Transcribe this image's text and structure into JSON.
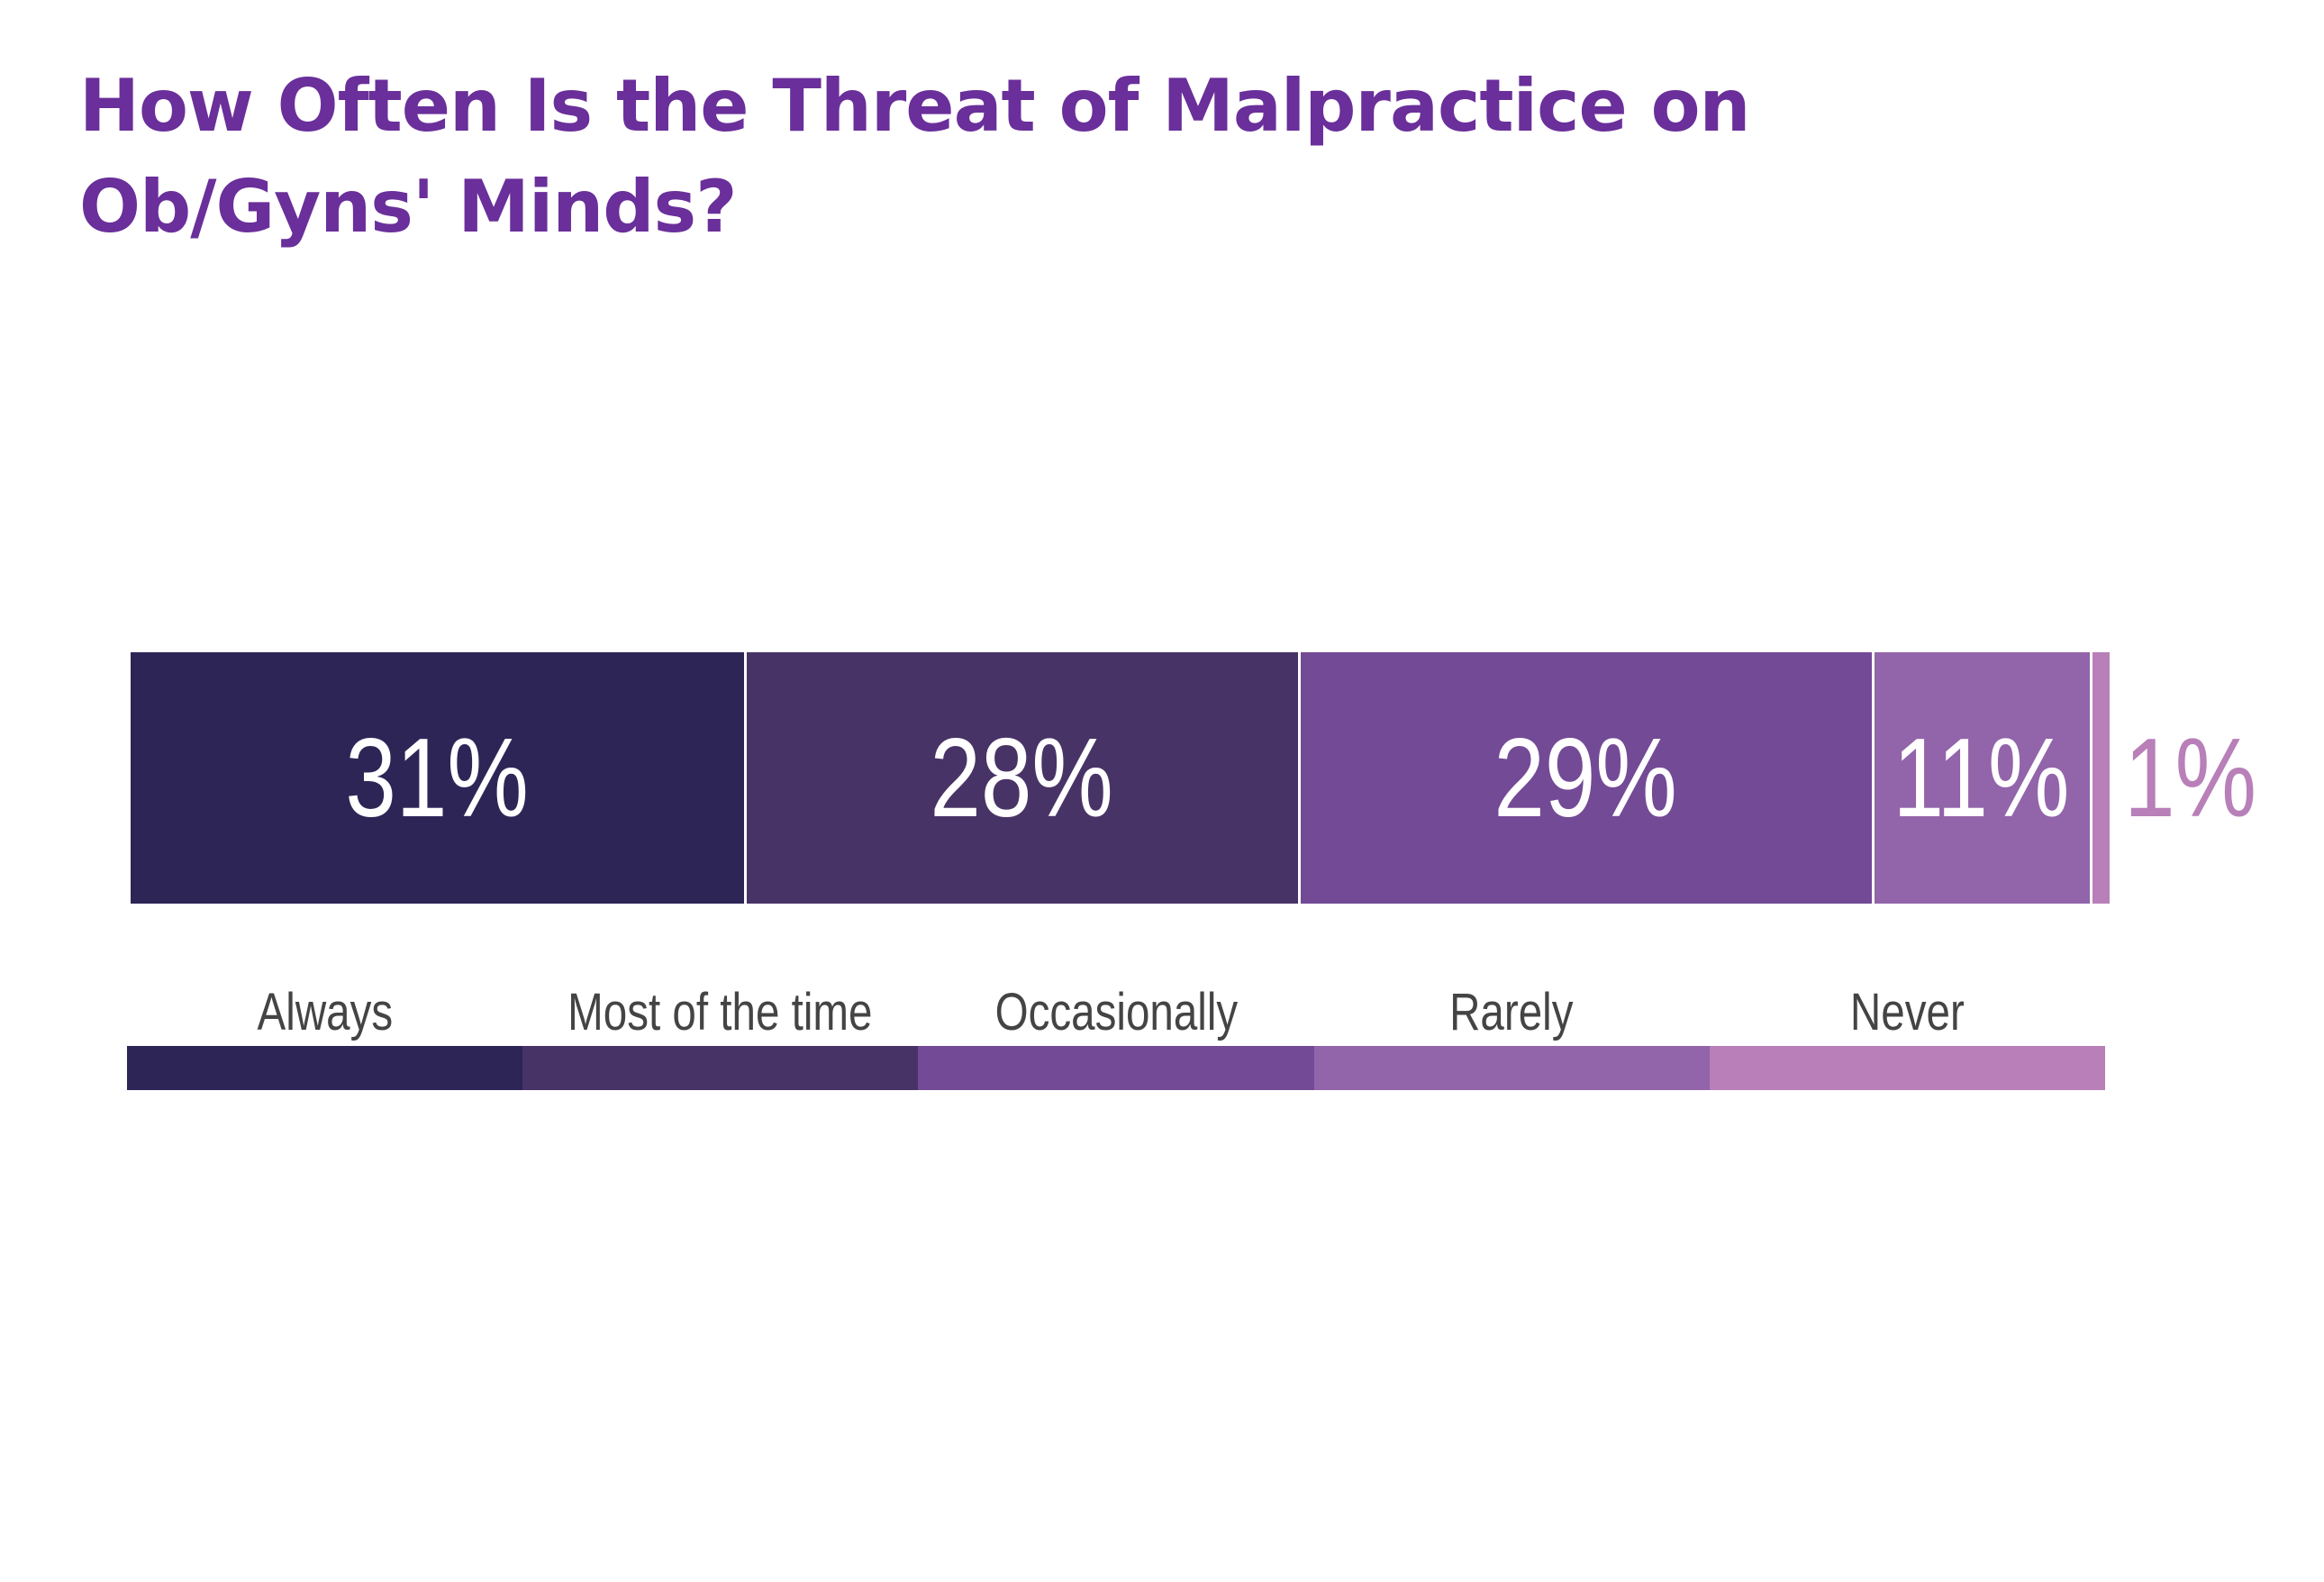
{
  "chart_data": {
    "type": "bar",
    "orientation": "horizontal-stacked",
    "title": "How Often Is the Threat of Malpractice on Ob/Gyns' Minds?",
    "categories": [
      "Always",
      "Most of the time",
      "Occasionally",
      "Rarely",
      "Never"
    ],
    "values": [
      31,
      28,
      29,
      11,
      1
    ],
    "data_labels": [
      "31%",
      "28%",
      "29%",
      "11%",
      "1%"
    ],
    "colors": [
      "#2e2557",
      "#483366",
      "#734a96",
      "#9264aa",
      "#b87fb8"
    ],
    "xlim": [
      0,
      100
    ],
    "grid": false,
    "legend_placement": "bottom"
  }
}
